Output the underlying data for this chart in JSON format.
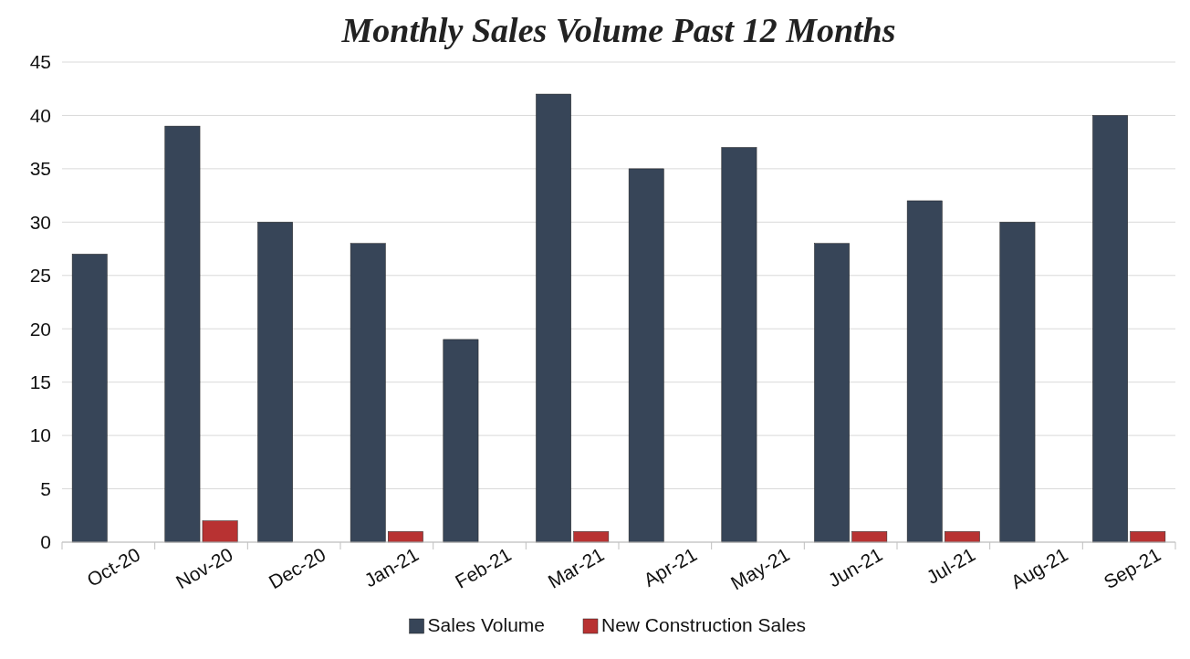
{
  "chart_data": {
    "type": "bar",
    "title": "Monthly Sales Volume Past 12 Months",
    "categories": [
      "Oct-20",
      "Nov-20",
      "Dec-20",
      "Jan-21",
      "Feb-21",
      "Mar-21",
      "Apr-21",
      "May-21",
      "Jun-21",
      "Jul-21",
      "Aug-21",
      "Sep-21"
    ],
    "series": [
      {
        "name": "Sales Volume",
        "color": "#374558",
        "values": [
          27,
          39,
          30,
          28,
          19,
          42,
          35,
          37,
          28,
          32,
          30,
          40
        ]
      },
      {
        "name": "New Construction Sales",
        "color": "#b83232",
        "values": [
          0,
          2,
          0,
          1,
          0,
          1,
          0,
          0,
          1,
          1,
          0,
          1
        ]
      }
    ],
    "ylim": [
      0,
      45
    ],
    "yticks": [
      0,
      5,
      10,
      15,
      20,
      25,
      30,
      35,
      40,
      45
    ],
    "grid": "y",
    "legend": "bottom"
  }
}
